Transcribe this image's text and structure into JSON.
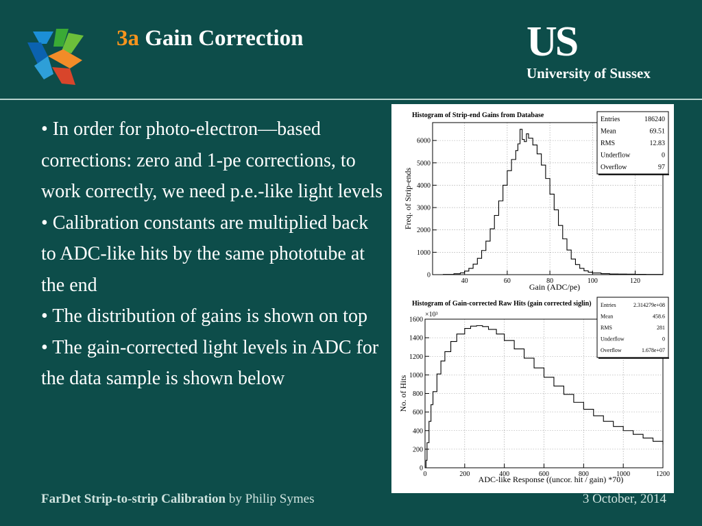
{
  "slide": {
    "title_number": "3a",
    "title_text": "Gain Correction",
    "bullets": [
      "• In order for photo-electron—based corrections: zero and 1-pe corrections, to work correctly, we need p.e.-like light levels",
      "• Calibration constants are multiplied back to ADC-like hits by the same phototube at the end",
      "• The distribution of gains is shown on top",
      "• The gain-corrected light levels in ADC for the data sample is shown below"
    ],
    "footer_bold": "FarDet Strip-to-strip Calibration",
    "footer_rest": " by Philip Symes",
    "date": "3 October, 2014",
    "colors": {
      "background": "#0d4d4a",
      "accent": "#f7941d"
    }
  },
  "logo": {
    "mark": "US",
    "name": "University of Sussex"
  },
  "chart_data": [
    {
      "type": "histogram",
      "title": "Histogram of Strip-end Gains from Database",
      "xlabel": "Gain (ADC/pe)",
      "ylabel": "Freq. of Strip-ends",
      "xlim": [
        25,
        133
      ],
      "ylim": [
        0,
        6800
      ],
      "xticks": [
        40,
        60,
        80,
        100,
        120
      ],
      "yticks": [
        0,
        1000,
        2000,
        3000,
        4000,
        5000,
        6000
      ],
      "grid": true,
      "stats": [
        {
          "label": "Entries",
          "value": "186240"
        },
        {
          "label": "Mean",
          "value": "69.51"
        },
        {
          "label": "RMS",
          "value": "12.83"
        },
        {
          "label": "Underflow",
          "value": "0"
        },
        {
          "label": "Overflow",
          "value": "97"
        }
      ],
      "legend_position": "top-right",
      "x": [
        25,
        30,
        35,
        38,
        40,
        42,
        44,
        46,
        48,
        50,
        52,
        54,
        56,
        58,
        60,
        62,
        64,
        65,
        66,
        67,
        68,
        69,
        70,
        72,
        74,
        76,
        78,
        80,
        82,
        84,
        86,
        88,
        90,
        92,
        94,
        96,
        98,
        100,
        104,
        108,
        112,
        116,
        120,
        125,
        133
      ],
      "y": [
        0,
        10,
        40,
        80,
        160,
        280,
        470,
        730,
        1080,
        1500,
        2050,
        2650,
        3300,
        4000,
        4650,
        5150,
        5550,
        5850,
        6500,
        6050,
        5950,
        6300,
        6100,
        5800,
        5400,
        4900,
        4300,
        3600,
        2900,
        2200,
        1600,
        1100,
        700,
        450,
        280,
        170,
        110,
        75,
        45,
        30,
        25,
        20,
        15,
        10,
        5
      ]
    },
    {
      "type": "histogram",
      "title": "Histogram of Gain-corrected Raw Hits (gain corrected siglin)",
      "xlabel": "ADC-like Response ((uncor. hit / gain) *70)",
      "ylabel": "No. of Hits",
      "y_multiplier": "×10³",
      "xlim": [
        0,
        1200
      ],
      "ylim": [
        0,
        1600
      ],
      "xticks": [
        0,
        200,
        400,
        600,
        800,
        1000,
        1200
      ],
      "yticks": [
        0,
        200,
        400,
        600,
        800,
        1000,
        1200,
        1400,
        1600
      ],
      "grid": true,
      "stats": [
        {
          "label": "Entries",
          "value": "2.314279e+08"
        },
        {
          "label": "Mean",
          "value": "458.6"
        },
        {
          "label": "RMS",
          "value": "281"
        },
        {
          "label": "Underflow",
          "value": "0"
        },
        {
          "label": "Overflow",
          "value": "1.678e+07"
        }
      ],
      "legend_position": "top-right",
      "x": [
        0,
        5,
        10,
        20,
        30,
        40,
        60,
        80,
        100,
        130,
        160,
        200,
        230,
        260,
        290,
        320,
        360,
        400,
        450,
        500,
        550,
        600,
        650,
        700,
        750,
        800,
        850,
        900,
        950,
        1000,
        1050,
        1100,
        1150,
        1200
      ],
      "y": [
        0,
        80,
        270,
        500,
        680,
        820,
        1010,
        1150,
        1250,
        1360,
        1440,
        1500,
        1525,
        1530,
        1520,
        1490,
        1440,
        1370,
        1280,
        1180,
        1075,
        975,
        880,
        790,
        705,
        630,
        560,
        500,
        445,
        400,
        360,
        320,
        285,
        250
      ]
    }
  ]
}
